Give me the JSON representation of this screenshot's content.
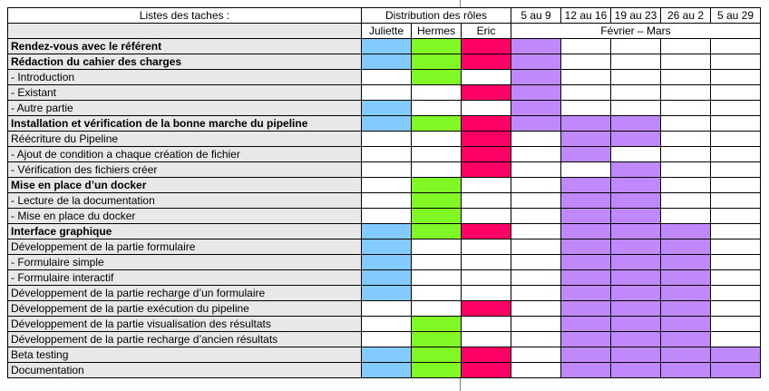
{
  "header": {
    "tasks_label": "Listes des taches :",
    "roles_label": "Distribution des rôles",
    "weeks": [
      "5 au 9",
      "12 au 16",
      "19 au 23",
      "26 au 2",
      "5 au 29"
    ],
    "people": [
      "Juliette",
      "Hermes",
      "Eric"
    ],
    "period": "Février – Mars"
  },
  "colors": {
    "task_bg": "#e8e8e8",
    "juliette": "#83caff",
    "hermes": "#81f826",
    "eric": "#ff0066",
    "schedule": "#bf88fb"
  },
  "rows": [
    {
      "label": "Rendez-vous avec le référent",
      "bold": true,
      "roles": [
        1,
        1,
        1
      ],
      "weeks": [
        1,
        0,
        0,
        0,
        0
      ]
    },
    {
      "label": "Rédaction du cahier des charges",
      "bold": true,
      "roles": [
        1,
        1,
        1
      ],
      "weeks": [
        1,
        0,
        0,
        0,
        0
      ]
    },
    {
      "label": " - Introduction",
      "bold": false,
      "roles": [
        0,
        1,
        0
      ],
      "weeks": [
        1,
        0,
        0,
        0,
        0
      ]
    },
    {
      "label": " - Existant",
      "bold": false,
      "roles": [
        0,
        0,
        1
      ],
      "weeks": [
        1,
        0,
        0,
        0,
        0
      ]
    },
    {
      "label": " - Autre partie",
      "bold": false,
      "roles": [
        1,
        0,
        0
      ],
      "weeks": [
        1,
        0,
        0,
        0,
        0
      ]
    },
    {
      "label": "Installation et vérification de la bonne marche du pipeline",
      "bold": true,
      "roles": [
        1,
        1,
        1
      ],
      "weeks": [
        1,
        1,
        1,
        0,
        0
      ]
    },
    {
      "label": "Réécriture du Pipeline",
      "bold": false,
      "roles": [
        0,
        0,
        1
      ],
      "weeks": [
        0,
        1,
        1,
        0,
        0
      ]
    },
    {
      "label": "- Ajout de condition a chaque création de fichier",
      "bold": false,
      "roles": [
        0,
        0,
        1
      ],
      "weeks": [
        0,
        1,
        0,
        0,
        0
      ]
    },
    {
      "label": "- Vérification des fichiers créer",
      "bold": false,
      "roles": [
        0,
        0,
        1
      ],
      "weeks": [
        0,
        0,
        1,
        0,
        0
      ]
    },
    {
      "label": "Mise en place d’un docker",
      "bold": true,
      "roles": [
        0,
        1,
        0
      ],
      "weeks": [
        0,
        1,
        1,
        0,
        0
      ]
    },
    {
      "label": " - Lecture de la documentation",
      "bold": false,
      "roles": [
        0,
        1,
        0
      ],
      "weeks": [
        0,
        1,
        1,
        0,
        0
      ]
    },
    {
      "label": "- Mise en place du docker",
      "bold": false,
      "roles": [
        0,
        1,
        0
      ],
      "weeks": [
        0,
        1,
        1,
        0,
        0
      ]
    },
    {
      "label": "Interface graphique",
      "bold": true,
      "roles": [
        1,
        1,
        1
      ],
      "weeks": [
        0,
        1,
        1,
        1,
        0
      ]
    },
    {
      "label": "Développement de la partie formulaire",
      "bold": false,
      "roles": [
        1,
        0,
        0
      ],
      "weeks": [
        0,
        1,
        1,
        1,
        0
      ]
    },
    {
      "label": "- Formulaire simple",
      "bold": false,
      "roles": [
        1,
        0,
        0
      ],
      "weeks": [
        0,
        1,
        1,
        1,
        0
      ]
    },
    {
      "label": "- Formulaire interactif",
      "bold": false,
      "roles": [
        1,
        0,
        0
      ],
      "weeks": [
        0,
        1,
        1,
        1,
        0
      ]
    },
    {
      "label": "Développement de la partie recharge d’un formulaire",
      "bold": false,
      "roles": [
        1,
        0,
        0
      ],
      "weeks": [
        0,
        1,
        1,
        1,
        0
      ]
    },
    {
      "label": "Développement de la partie exécution du pipeline",
      "bold": false,
      "roles": [
        0,
        0,
        1
      ],
      "weeks": [
        0,
        1,
        1,
        1,
        0
      ]
    },
    {
      "label": "Développement de la partie visualisation des résultats",
      "bold": false,
      "roles": [
        0,
        1,
        0
      ],
      "weeks": [
        0,
        1,
        1,
        1,
        0
      ]
    },
    {
      "label": "Développement de la partie recharge d’ancien résultats",
      "bold": false,
      "roles": [
        0,
        1,
        0
      ],
      "weeks": [
        0,
        1,
        1,
        1,
        0
      ]
    },
    {
      "label": "Beta testing",
      "bold": false,
      "roles": [
        1,
        1,
        1
      ],
      "weeks": [
        0,
        1,
        1,
        1,
        1
      ]
    },
    {
      "label": "Documentation",
      "bold": false,
      "roles": [
        1,
        1,
        1
      ],
      "weeks": [
        0,
        1,
        1,
        1,
        1
      ]
    }
  ]
}
